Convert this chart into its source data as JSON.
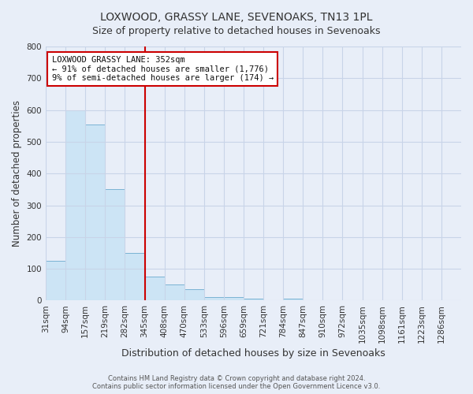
{
  "title": "LOXWOOD, GRASSY LANE, SEVENOAKS, TN13 1PL",
  "subtitle": "Size of property relative to detached houses in Sevenoaks",
  "xlabel": "Distribution of detached houses by size in Sevenoaks",
  "ylabel": "Number of detached properties",
  "footer_line1": "Contains HM Land Registry data © Crown copyright and database right 2024.",
  "footer_line2": "Contains public sector information licensed under the Open Government Licence v3.0.",
  "bar_labels": [
    "31sqm",
    "94sqm",
    "157sqm",
    "219sqm",
    "282sqm",
    "345sqm",
    "408sqm",
    "470sqm",
    "533sqm",
    "596sqm",
    "659sqm",
    "721sqm",
    "784sqm",
    "847sqm",
    "910sqm",
    "972sqm",
    "1035sqm",
    "1098sqm",
    "1161sqm",
    "1223sqm",
    "1286sqm"
  ],
  "bar_heights": [
    125,
    600,
    555,
    350,
    150,
    75,
    50,
    35,
    12,
    10,
    5,
    0,
    5,
    0,
    0,
    0,
    0,
    0,
    0,
    0,
    0
  ],
  "bar_color": "#cce4f5",
  "bar_edge_color": "#7ab3d3",
  "vline_index": 5,
  "vline_color": "#cc0000",
  "annotation_title": "LOXWOOD GRASSY LANE: 352sqm",
  "annotation_line1": "← 91% of detached houses are smaller (1,776)",
  "annotation_line2": "9% of semi-detached houses are larger (174) →",
  "annotation_box_facecolor": "#ffffff",
  "annotation_box_edgecolor": "#cc0000",
  "ylim": [
    0,
    800
  ],
  "yticks": [
    0,
    100,
    200,
    300,
    400,
    500,
    600,
    700,
    800
  ],
  "grid_color": "#c8d4e8",
  "background_color": "#e8eef8",
  "plot_background": "#e8eef8",
  "title_fontsize": 10,
  "subtitle_fontsize": 9,
  "tick_fontsize": 7.5,
  "ylabel_fontsize": 8.5,
  "xlabel_fontsize": 9
}
